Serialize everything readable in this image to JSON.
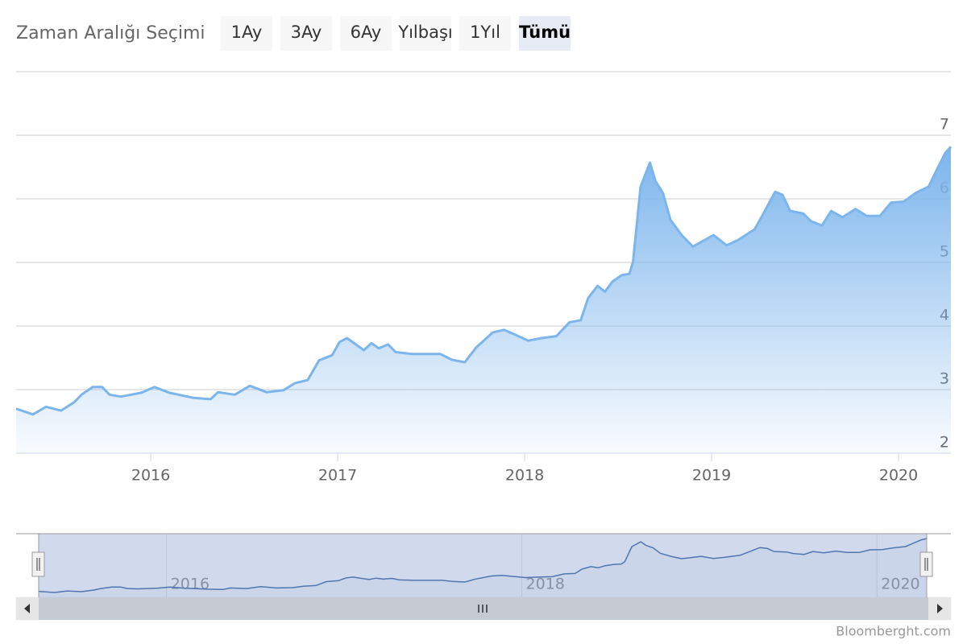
{
  "range_selector": {
    "label": "Zaman Aralığı Seçimi",
    "buttons": [
      "1Ay",
      "3Ay",
      "6Ay",
      "Yılbaşı",
      "1Yıl",
      "Tümü"
    ],
    "selected": 5
  },
  "chart_data": {
    "type": "area",
    "x": [
      2015.28,
      2015.37,
      2015.44,
      2015.52,
      2015.59,
      2015.63,
      2015.69,
      2015.74,
      2015.78,
      2015.84,
      2015.95,
      2016.02,
      2016.1,
      2016.23,
      2016.32,
      2016.36,
      2016.45,
      2016.53,
      2016.62,
      2016.71,
      2016.77,
      2016.84,
      2016.9,
      2016.97,
      2017.01,
      2017.05,
      2017.14,
      2017.18,
      2017.22,
      2017.27,
      2017.31,
      2017.4,
      2017.48,
      2017.55,
      2017.61,
      2017.68,
      2017.74,
      2017.83,
      2017.89,
      2017.96,
      2018.02,
      2018.09,
      2018.17,
      2018.24,
      2018.3,
      2018.34,
      2018.39,
      2018.43,
      2018.47,
      2018.52,
      2018.56,
      2018.58,
      2018.62,
      2018.67,
      2018.7,
      2018.74,
      2018.78,
      2018.84,
      2018.9,
      2018.95,
      2019.01,
      2019.08,
      2019.14,
      2019.23,
      2019.27,
      2019.34,
      2019.38,
      2019.42,
      2019.49,
      2019.53,
      2019.59,
      2019.64,
      2019.7,
      2019.77,
      2019.83,
      2019.9,
      2019.96,
      2020.03,
      2020.09,
      2020.16,
      2020.21,
      2020.25,
      2020.28
    ],
    "values": [
      2.7,
      2.61,
      2.73,
      2.67,
      2.8,
      2.92,
      3.04,
      3.04,
      2.92,
      2.89,
      2.95,
      3.04,
      2.95,
      2.87,
      2.85,
      2.96,
      2.92,
      3.06,
      2.96,
      2.99,
      3.1,
      3.15,
      3.46,
      3.54,
      3.75,
      3.81,
      3.62,
      3.73,
      3.65,
      3.71,
      3.59,
      3.56,
      3.56,
      3.56,
      3.47,
      3.43,
      3.66,
      3.9,
      3.94,
      3.85,
      3.77,
      3.81,
      3.84,
      4.06,
      4.09,
      4.44,
      4.63,
      4.54,
      4.7,
      4.8,
      4.82,
      5.01,
      6.19,
      6.57,
      6.28,
      6.09,
      5.67,
      5.43,
      5.25,
      5.33,
      5.43,
      5.27,
      5.35,
      5.52,
      5.73,
      6.11,
      6.06,
      5.81,
      5.77,
      5.65,
      5.58,
      5.81,
      5.71,
      5.84,
      5.73,
      5.73,
      5.94,
      5.96,
      6.09,
      6.19,
      6.49,
      6.72,
      6.82
    ],
    "color": "#7cb5ec",
    "xlim": [
      2015.28,
      2020.28
    ],
    "xticks": [
      2016,
      2017,
      2018,
      2019,
      2020
    ],
    "ylim": [
      2,
      8
    ],
    "yticks": [
      2,
      3,
      4,
      5,
      6,
      7
    ],
    "grid": true,
    "navigator_xticks": [
      2016,
      2018,
      2020
    ],
    "navigator_color": "#4572a7"
  },
  "credit": "Bloomberght.com"
}
